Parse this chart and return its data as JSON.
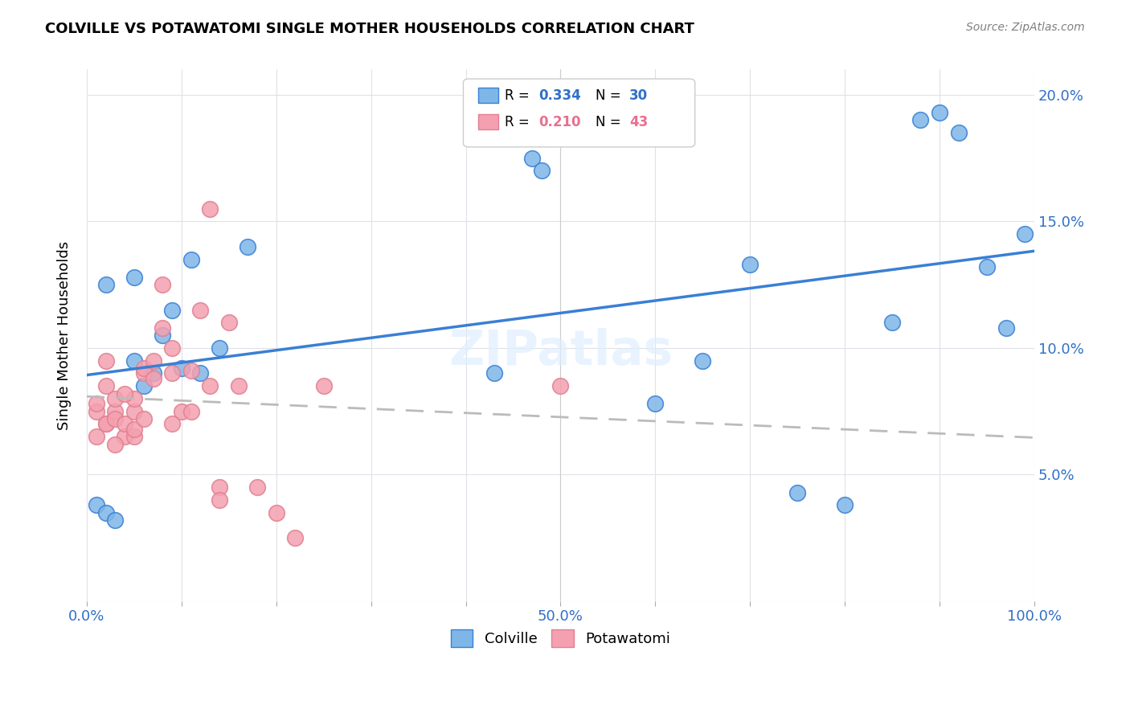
{
  "title": "COLVILLE VS POTAWATOMI SINGLE MOTHER HOUSEHOLDS CORRELATION CHART",
  "source": "Source: ZipAtlas.com",
  "ylabel": "Single Mother Households",
  "xlim": [
    0,
    100
  ],
  "ylim": [
    0,
    21
  ],
  "colville_color": "#7EB6E8",
  "potawatomi_color": "#F4A0B0",
  "colville_line_color": "#3A7FD4",
  "potawatomi_line_color": "#E08090",
  "watermark": "ZIPatlas",
  "colville_x": [
    1,
    2,
    2,
    3,
    5,
    5,
    6,
    7,
    8,
    9,
    10,
    11,
    12,
    14,
    17,
    43,
    47,
    48,
    60,
    65,
    70,
    75,
    80,
    85,
    88,
    90,
    92,
    95,
    97,
    99
  ],
  "colville_y": [
    3.8,
    3.5,
    12.5,
    3.2,
    12.8,
    9.5,
    8.5,
    9.0,
    10.5,
    11.5,
    9.2,
    13.5,
    9.0,
    10.0,
    14.0,
    9.0,
    17.5,
    17.0,
    7.8,
    9.5,
    13.3,
    4.3,
    3.8,
    11.0,
    19.0,
    19.3,
    18.5,
    13.2,
    10.8,
    14.5
  ],
  "potawatomi_x": [
    1,
    1,
    2,
    2,
    2,
    3,
    3,
    3,
    4,
    4,
    5,
    5,
    5,
    6,
    6,
    7,
    8,
    9,
    9,
    10,
    11,
    12,
    13,
    13,
    14,
    14,
    15,
    16,
    18,
    20,
    22,
    25,
    50,
    8,
    5,
    4,
    3,
    2,
    1,
    6,
    7,
    9,
    11
  ],
  "potawatomi_y": [
    7.5,
    6.5,
    7.0,
    8.5,
    7.0,
    7.5,
    8.0,
    7.2,
    6.5,
    7.0,
    6.5,
    7.5,
    8.0,
    9.0,
    9.2,
    9.5,
    12.5,
    9.0,
    10.0,
    7.5,
    7.5,
    11.5,
    8.5,
    15.5,
    4.5,
    4.0,
    11.0,
    8.5,
    4.5,
    3.5,
    2.5,
    8.5,
    8.5,
    10.8,
    6.8,
    8.2,
    6.2,
    9.5,
    7.8,
    7.2,
    8.8,
    7.0,
    9.1
  ]
}
